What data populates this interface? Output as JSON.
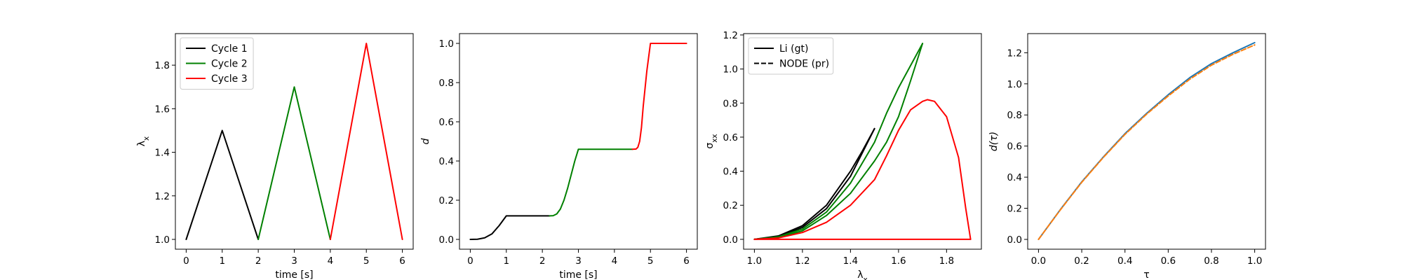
{
  "chart_data": [
    {
      "type": "line",
      "xlabel": "time [s]",
      "ylabel": "λx",
      "xlim": [
        -0.3,
        6.3
      ],
      "ylim": [
        0.955,
        1.945
      ],
      "xticks": [
        0,
        1,
        2,
        3,
        4,
        5,
        6
      ],
      "yticks": [
        1.0,
        1.2,
        1.4,
        1.6,
        1.8
      ],
      "legend_position": "upper-left",
      "series": [
        {
          "name": "Cycle 1",
          "color": "#000000",
          "x": [
            0,
            1,
            2
          ],
          "y": [
            1.0,
            1.5,
            1.0
          ]
        },
        {
          "name": "Cycle 2",
          "color": "#008000",
          "x": [
            2,
            3,
            4
          ],
          "y": [
            1.0,
            1.7,
            1.0
          ]
        },
        {
          "name": "Cycle 3",
          "color": "#ff0000",
          "x": [
            4,
            5,
            6
          ],
          "y": [
            1.0,
            1.9,
            1.0
          ]
        }
      ]
    },
    {
      "type": "line",
      "xlabel": "time [s]",
      "ylabel": "d",
      "xlim": [
        -0.3,
        6.3
      ],
      "ylim": [
        -0.05,
        1.05
      ],
      "xticks": [
        0,
        1,
        2,
        3,
        4,
        5,
        6
      ],
      "yticks": [
        0.0,
        0.2,
        0.4,
        0.6,
        0.8,
        1.0
      ],
      "series": [
        {
          "color": "#000000",
          "x": [
            0,
            0.2,
            0.4,
            0.6,
            0.8,
            0.9,
            1.0,
            1.5,
            2.0,
            2.2
          ],
          "y": [
            0.0,
            0.001,
            0.008,
            0.028,
            0.07,
            0.095,
            0.12,
            0.12,
            0.12,
            0.12
          ]
        },
        {
          "color": "#008000",
          "x": [
            2.2,
            2.3,
            2.4,
            2.5,
            2.6,
            2.7,
            2.8,
            2.9,
            3.0,
            3.5,
            4.0,
            4.5
          ],
          "y": [
            0.12,
            0.121,
            0.13,
            0.155,
            0.2,
            0.26,
            0.33,
            0.4,
            0.46,
            0.46,
            0.46,
            0.46
          ]
        },
        {
          "color": "#ff0000",
          "x": [
            4.5,
            4.6,
            4.65,
            4.7,
            4.75,
            4.8,
            4.9,
            5.0,
            5.5,
            6.0
          ],
          "y": [
            0.46,
            0.461,
            0.47,
            0.5,
            0.57,
            0.68,
            0.86,
            1.0,
            1.0,
            1.0
          ]
        }
      ]
    },
    {
      "type": "line",
      "xlabel": "λx",
      "ylabel": "σxx",
      "xlim": [
        0.955,
        1.945
      ],
      "ylim": [
        -0.058,
        1.208
      ],
      "xticks": [
        1.0,
        1.2,
        1.4,
        1.6,
        1.8
      ],
      "yticks": [
        0.0,
        0.2,
        0.4,
        0.6,
        0.8,
        1.0,
        1.2
      ],
      "legend_position": "upper-left",
      "legend": [
        {
          "label": "Li (gt)",
          "style": "solid"
        },
        {
          "label": "NODE (pr)",
          "style": "dashed"
        }
      ],
      "series": [
        {
          "color": "#000000",
          "x": [
            1.0,
            1.1,
            1.2,
            1.3,
            1.4,
            1.45,
            1.5
          ],
          "y": [
            0.0,
            0.02,
            0.08,
            0.2,
            0.4,
            0.52,
            0.65
          ]
        },
        {
          "color": "#000000",
          "x": [
            1.5,
            1.4,
            1.3,
            1.2,
            1.1,
            1.0
          ],
          "y": [
            0.65,
            0.37,
            0.18,
            0.07,
            0.015,
            0.0
          ]
        },
        {
          "color": "#008000",
          "x": [
            1.0,
            1.1,
            1.2,
            1.3,
            1.4,
            1.5,
            1.55,
            1.6,
            1.65,
            1.7
          ],
          "y": [
            0.0,
            0.015,
            0.06,
            0.16,
            0.33,
            0.57,
            0.74,
            0.89,
            1.02,
            1.15
          ]
        },
        {
          "color": "#008000",
          "x": [
            1.7,
            1.65,
            1.6,
            1.55,
            1.5,
            1.4,
            1.3,
            1.2,
            1.1,
            1.0
          ],
          "y": [
            1.15,
            0.93,
            0.72,
            0.57,
            0.46,
            0.27,
            0.14,
            0.05,
            0.01,
            0.0
          ]
        },
        {
          "color": "#ff0000",
          "x": [
            1.0,
            1.1,
            1.2,
            1.3,
            1.4,
            1.5,
            1.55,
            1.6,
            1.65,
            1.7,
            1.72,
            1.75,
            1.8,
            1.85,
            1.88,
            1.9
          ],
          "y": [
            0.0,
            0.008,
            0.04,
            0.1,
            0.2,
            0.35,
            0.49,
            0.64,
            0.76,
            0.81,
            0.82,
            0.81,
            0.72,
            0.48,
            0.18,
            0.0
          ]
        },
        {
          "color": "#ff0000",
          "x": [
            1.9,
            1.0
          ],
          "y": [
            0.0,
            0.0
          ]
        }
      ]
    },
    {
      "type": "line",
      "xlabel": "τ",
      "ylabel": "d(τ)",
      "xlim": [
        -0.05,
        1.05
      ],
      "ylim": [
        -0.063,
        1.323
      ],
      "xticks": [
        0.0,
        0.2,
        0.4,
        0.6,
        0.8,
        1.0
      ],
      "yticks": [
        0.0,
        0.2,
        0.4,
        0.6,
        0.8,
        1.0,
        1.2
      ],
      "series": [
        {
          "color": "#1f77b4",
          "style": "solid",
          "x": [
            0.0,
            0.1,
            0.2,
            0.3,
            0.4,
            0.5,
            0.6,
            0.7,
            0.8,
            0.9,
            1.0
          ],
          "y": [
            0.0,
            0.19,
            0.37,
            0.53,
            0.68,
            0.81,
            0.93,
            1.04,
            1.13,
            1.2,
            1.265
          ]
        },
        {
          "color": "#ff7f0e",
          "style": "dashed",
          "x": [
            0.0,
            0.1,
            0.2,
            0.3,
            0.4,
            0.5,
            0.6,
            0.7,
            0.8,
            0.9,
            1.0
          ],
          "y": [
            0.0,
            0.188,
            0.367,
            0.527,
            0.675,
            0.805,
            0.922,
            1.03,
            1.12,
            1.19,
            1.25
          ]
        }
      ]
    }
  ]
}
